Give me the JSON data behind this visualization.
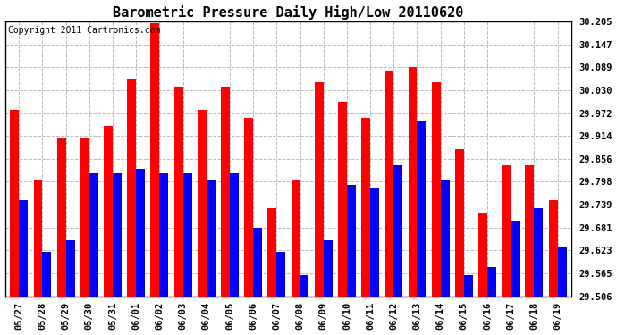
{
  "title": "Barometric Pressure Daily High/Low 20110620",
  "copyright": "Copyright 2011 Cartronics.com",
  "dates": [
    "05/27",
    "05/28",
    "05/29",
    "05/30",
    "05/31",
    "06/01",
    "06/02",
    "06/03",
    "06/04",
    "06/05",
    "06/06",
    "06/07",
    "06/08",
    "06/09",
    "06/10",
    "06/11",
    "06/12",
    "06/13",
    "06/14",
    "06/15",
    "06/16",
    "06/17",
    "06/18",
    "06/19"
  ],
  "highs": [
    29.98,
    29.8,
    29.91,
    29.91,
    29.94,
    30.06,
    30.2,
    30.04,
    29.98,
    30.04,
    29.96,
    29.73,
    29.8,
    30.05,
    30.0,
    29.96,
    30.08,
    30.09,
    30.05,
    29.88,
    29.72,
    29.84,
    29.84,
    29.75
  ],
  "lows": [
    29.75,
    29.62,
    29.65,
    29.82,
    29.82,
    29.83,
    29.82,
    29.82,
    29.8,
    29.82,
    29.68,
    29.62,
    29.56,
    29.65,
    29.79,
    29.78,
    29.84,
    29.95,
    29.8,
    29.56,
    29.58,
    29.7,
    29.73,
    29.63
  ],
  "high_color": "#ff0000",
  "low_color": "#0000ff",
  "background_color": "#ffffff",
  "grid_color": "#bbbbbb",
  "yticks": [
    29.506,
    29.565,
    29.623,
    29.681,
    29.739,
    29.798,
    29.856,
    29.914,
    29.972,
    30.03,
    30.089,
    30.147,
    30.205
  ],
  "ymin": 29.506,
  "ymax": 30.205,
  "title_fontsize": 11,
  "tick_fontsize": 7.5,
  "copyright_fontsize": 7
}
